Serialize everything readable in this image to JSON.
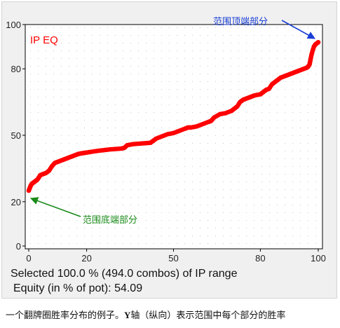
{
  "chart_data": {
    "type": "scatter",
    "series_label": "IP EQ",
    "series_color": "#ff0000",
    "xlim": [
      0,
      100
    ],
    "ylim": [
      0,
      100
    ],
    "x_ticks": [
      0,
      20,
      50,
      80,
      100
    ],
    "y_ticks": [
      0,
      20,
      50,
      80,
      100
    ],
    "grid": "dotted",
    "x": [
      0,
      0.3,
      0.6,
      1,
      1.5,
      2,
      2.5,
      3,
      3.5,
      4,
      5,
      6,
      7,
      8,
      9,
      10,
      11,
      12,
      13,
      14,
      15,
      16,
      17,
      18,
      19,
      20,
      22,
      24,
      26,
      28,
      30,
      32,
      33,
      34,
      36,
      38,
      40,
      42,
      43,
      44,
      46,
      48,
      50,
      52,
      54,
      55,
      56,
      58,
      60,
      62,
      63,
      64,
      66,
      68,
      70,
      71,
      72,
      73,
      74,
      75,
      76,
      77,
      78,
      80,
      81,
      82,
      83,
      84,
      85,
      86,
      87,
      88,
      89,
      90,
      91,
      92,
      93,
      94,
      95,
      96,
      96.5,
      97,
      97.3,
      97.6,
      98,
      98.5,
      99,
      99.5,
      100
    ],
    "y": [
      25,
      26,
      27,
      28,
      28.5,
      29,
      29.5,
      30,
      31,
      32,
      32.5,
      33,
      34,
      36,
      37.5,
      38,
      38.5,
      39,
      39.5,
      40,
      40.5,
      41,
      41.5,
      41.8,
      42,
      42.2,
      42.6,
      43,
      43.3,
      43.6,
      43.8,
      44,
      44.3,
      45.5,
      46,
      46.2,
      46.4,
      46.6,
      47.5,
      48.5,
      49.5,
      50.5,
      51,
      52,
      53,
      53.5,
      53.5,
      54,
      55,
      56,
      56.5,
      58,
      59.5,
      60,
      61,
      62,
      63,
      65,
      66,
      66.5,
      67,
      67.5,
      68,
      68.5,
      69.5,
      70.5,
      71,
      73,
      74,
      75,
      76,
      76.5,
      77,
      77.5,
      78,
      78.5,
      79,
      79.5,
      80,
      80.5,
      81,
      82,
      84,
      86,
      88,
      90,
      91,
      91.5,
      92
    ],
    "annotations": [
      {
        "text": "范围顶端部分",
        "color": "#1a3fd6",
        "x": 100,
        "y": 92
      },
      {
        "text": "范围底端部分",
        "color": "#1a8a1a",
        "x": 0,
        "y": 25
      }
    ]
  },
  "selection_text": "Selected 100.0 % (494.0 combos) of IP range",
  "equity_text": " Equity (in % of pot): 54.09",
  "caption": {
    "part1": "一个翻牌圈胜率分布的例子。",
    "part2": "Y",
    "part3": "轴（纵向）表示范围中每个部分的胜率"
  }
}
